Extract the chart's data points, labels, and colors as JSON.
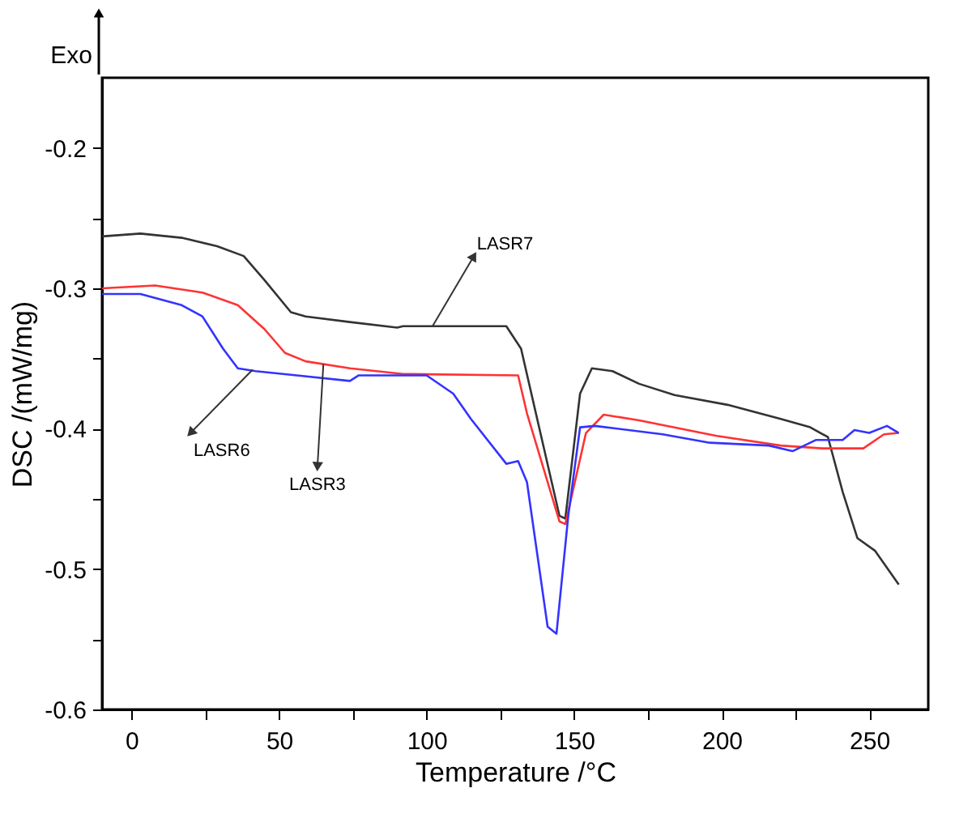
{
  "chart_data": {
    "type": "line",
    "xlabel": "Temperature /°C",
    "ylabel": "DSC /(mW/mg)",
    "xlim": [
      -10,
      270
    ],
    "ylim": [
      -0.6,
      -0.15
    ],
    "xticks": [
      0,
      {
        "value": 25,
        "label": null
      },
      50,
      {
        "value": 75,
        "label": null
      },
      100,
      {
        "value": 125,
        "label": null
      },
      150,
      {
        "value": 175,
        "label": null
      },
      200,
      {
        "value": 225,
        "label": null
      },
      250
    ],
    "yticks": [
      -0.6,
      {
        "value": -0.55,
        "label": null
      },
      -0.5,
      {
        "value": -0.45,
        "label": null
      },
      -0.4,
      {
        "value": -0.35,
        "label": null
      },
      -0.3,
      {
        "value": -0.25,
        "label": null
      },
      -0.2
    ],
    "grid": false,
    "marker": "none",
    "line_style": "solid",
    "series": [
      {
        "color": "#333333",
        "x": [
          -10,
          3,
          17,
          29,
          38,
          45,
          54,
          59,
          74,
          90,
          92,
          127,
          132,
          145,
          147,
          152,
          156,
          163,
          172,
          184,
          202,
          220,
          230,
          236,
          241,
          246,
          252,
          260
        ],
        "values": [
          -0.263,
          -0.261,
          -0.264,
          -0.27,
          -0.277,
          -0.294,
          -0.317,
          -0.32,
          -0.324,
          -0.328,
          -0.327,
          -0.327,
          -0.343,
          -0.462,
          -0.464,
          -0.375,
          -0.357,
          -0.359,
          -0.368,
          -0.376,
          -0.383,
          -0.393,
          -0.399,
          -0.406,
          -0.445,
          -0.478,
          -0.487,
          -0.511
        ]
      },
      {
        "color": "#ff3333",
        "x": [
          -10,
          8,
          24,
          36,
          45,
          52,
          59,
          74,
          92,
          131,
          134,
          145,
          147,
          154,
          160,
          172,
          198,
          220,
          234,
          248,
          255,
          260
        ],
        "values": [
          -0.3,
          -0.298,
          -0.303,
          -0.312,
          -0.329,
          -0.346,
          -0.352,
          -0.357,
          -0.361,
          -0.362,
          -0.389,
          -0.466,
          -0.468,
          -0.403,
          -0.39,
          -0.394,
          -0.405,
          -0.412,
          -0.414,
          -0.414,
          -0.404,
          -0.403
        ]
      },
      {
        "color": "#3333ff",
        "x": [
          -10,
          3,
          17,
          24,
          31,
          36,
          42,
          56,
          74,
          77,
          92,
          100,
          109,
          115,
          127,
          131,
          134,
          141,
          144,
          148,
          152,
          157,
          180,
          196,
          216,
          224,
          232,
          241,
          245,
          250,
          256,
          260
        ],
        "values": [
          -0.304,
          -0.304,
          -0.312,
          -0.32,
          -0.343,
          -0.357,
          -0.359,
          -0.362,
          -0.366,
          -0.362,
          -0.362,
          -0.362,
          -0.375,
          -0.393,
          -0.425,
          -0.423,
          -0.438,
          -0.541,
          -0.546,
          -0.462,
          -0.399,
          -0.398,
          -0.404,
          -0.41,
          -0.412,
          -0.416,
          -0.408,
          -0.408,
          -0.401,
          -0.403,
          -0.398,
          -0.403
        ]
      }
    ],
    "annotations": [
      "Exo",
      {
        "text": "LASR7",
        "x": 102,
        "y": -0.327
      },
      {
        "text": "LASR6",
        "x": 41,
        "y": -0.358
      },
      {
        "text": "LASR3",
        "x": 65,
        "y": -0.354
      }
    ]
  }
}
